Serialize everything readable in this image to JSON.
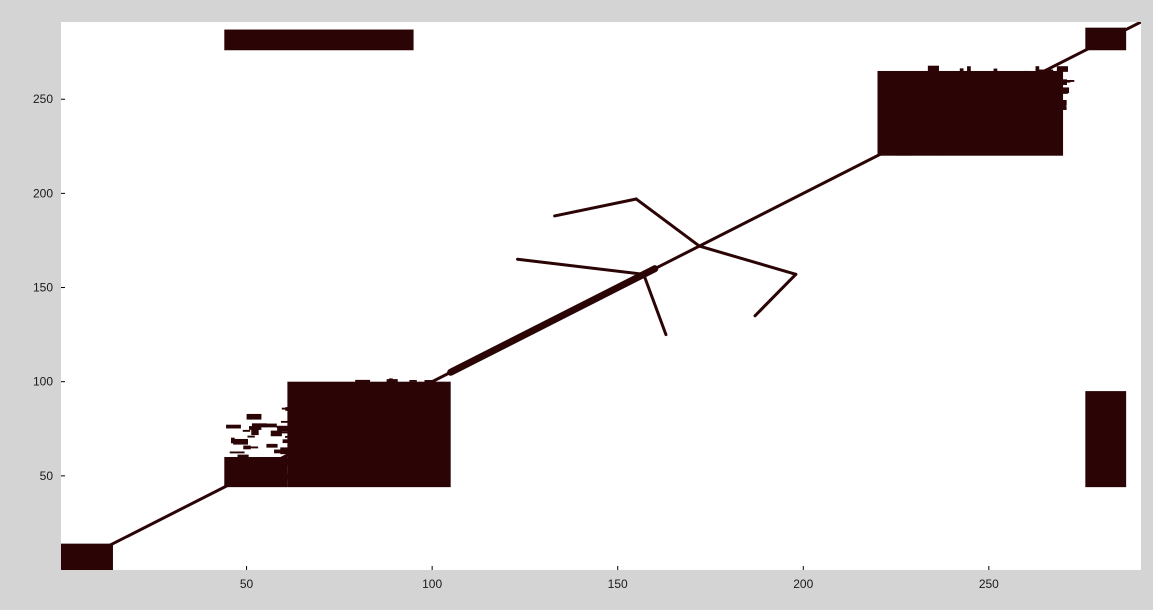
{
  "chart_data": {
    "type": "heatmap",
    "title": "",
    "xlabel": "",
    "ylabel": "",
    "xlim": [
      0,
      291
    ],
    "ylim": [
      0,
      291
    ],
    "xticks": [
      50,
      100,
      150,
      200,
      250
    ],
    "yticks": [
      50,
      100,
      150,
      200,
      250
    ],
    "xtick_labels": [
      "50",
      "100",
      "150",
      "200",
      "250"
    ],
    "ytick_labels": [
      "50",
      "100",
      "150",
      "200",
      "250"
    ],
    "grid": false,
    "colors": {
      "mark": "#2b0506",
      "background": "#ffffff",
      "figure": "#d4d4d4"
    },
    "diagonal": {
      "from": [
        0,
        0
      ],
      "to": [
        291,
        291
      ],
      "width": 3
    },
    "blocks": [
      {
        "x": [
          0,
          14
        ],
        "y": [
          0,
          14
        ]
      },
      {
        "x": [
          44,
          61
        ],
        "y": [
          44,
          60
        ]
      },
      {
        "x": [
          61,
          105
        ],
        "y": [
          44,
          100
        ]
      },
      {
        "x": [
          220,
          270
        ],
        "y": [
          220,
          265
        ]
      },
      {
        "x": [
          276,
          287
        ],
        "y": [
          276,
          288
        ]
      },
      {
        "x": [
          276,
          287
        ],
        "y": [
          44,
          95
        ]
      },
      {
        "x": [
          44,
          95
        ],
        "y": [
          276,
          287
        ]
      }
    ],
    "scatter_clusters": [
      {
        "x": [
          44,
          100
        ],
        "y": [
          44,
          100
        ]
      },
      {
        "x": [
          220,
          270
        ],
        "y": [
          220,
          265
        ]
      }
    ],
    "branch_segments": [
      {
        "from": [
          157,
          157
        ],
        "to": [
          123,
          165
        ]
      },
      {
        "from": [
          157,
          157
        ],
        "to": [
          163,
          125
        ]
      },
      {
        "from": [
          172,
          172
        ],
        "to": [
          155,
          197
        ]
      },
      {
        "from": [
          172,
          172
        ],
        "to": [
          198,
          157
        ]
      },
      {
        "from": [
          155,
          197
        ],
        "to": [
          133,
          188
        ]
      },
      {
        "from": [
          198,
          157
        ],
        "to": [
          187,
          135
        ]
      }
    ]
  }
}
